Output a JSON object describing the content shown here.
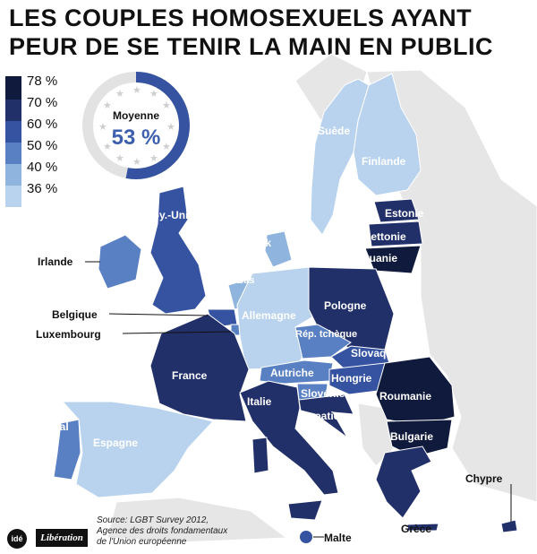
{
  "title": "LES COUPLES HOMOSEXUELS AYANT PEUR DE SE TENIR LA MAIN EN PUBLIC",
  "legend": {
    "items": [
      {
        "label": "78 %",
        "color": "#0f1a3c"
      },
      {
        "label": "70 %",
        "color": "#22306a"
      },
      {
        "label": "60 %",
        "color": "#3553a0"
      },
      {
        "label": "50 %",
        "color": "#5a80c4"
      },
      {
        "label": "40 %",
        "color": "#8fb4de"
      },
      {
        "label": "36 %",
        "color": "#b9d3ee"
      }
    ]
  },
  "average": {
    "label": "Moyenne",
    "value": "53 %",
    "fraction": 0.53
  },
  "countries": {
    "suede": "Suède",
    "finlande": "Finlande",
    "estonie": "Estonie",
    "lettonie": "Lettonie",
    "lituanie": "Lituanie",
    "roy_uni": "Roy.-Uni",
    "danemark": "Danemark",
    "irlande": "Irlande",
    "pays_bas": "Pays-Bas",
    "belgique": "Belgique",
    "luxembourg": "Luxembourg",
    "allemagne": "Allemagne",
    "pologne": "Pologne",
    "rep_tcheque": "Rép. tchèque",
    "slovaquie": "Slovaquie",
    "france": "France",
    "autriche": "Autriche",
    "hongrie": "Hongrie",
    "slovenie": "Slovénie",
    "roumanie": "Roumanie",
    "italie": "Italie",
    "croatie": "Croatie",
    "bulgarie": "Bulgarie",
    "portugal": "Portugal",
    "espagne": "Espagne",
    "chypre": "Chypre",
    "malte": "Malte",
    "grece": "Grèce"
  },
  "source": {
    "line1": "Source: LGBT Survey 2012,",
    "line2": "Agence des droits fondamentaux",
    "line3": "de l'Union européenne"
  },
  "logos": {
    "ide": "idé",
    "liberation": "Libération"
  }
}
